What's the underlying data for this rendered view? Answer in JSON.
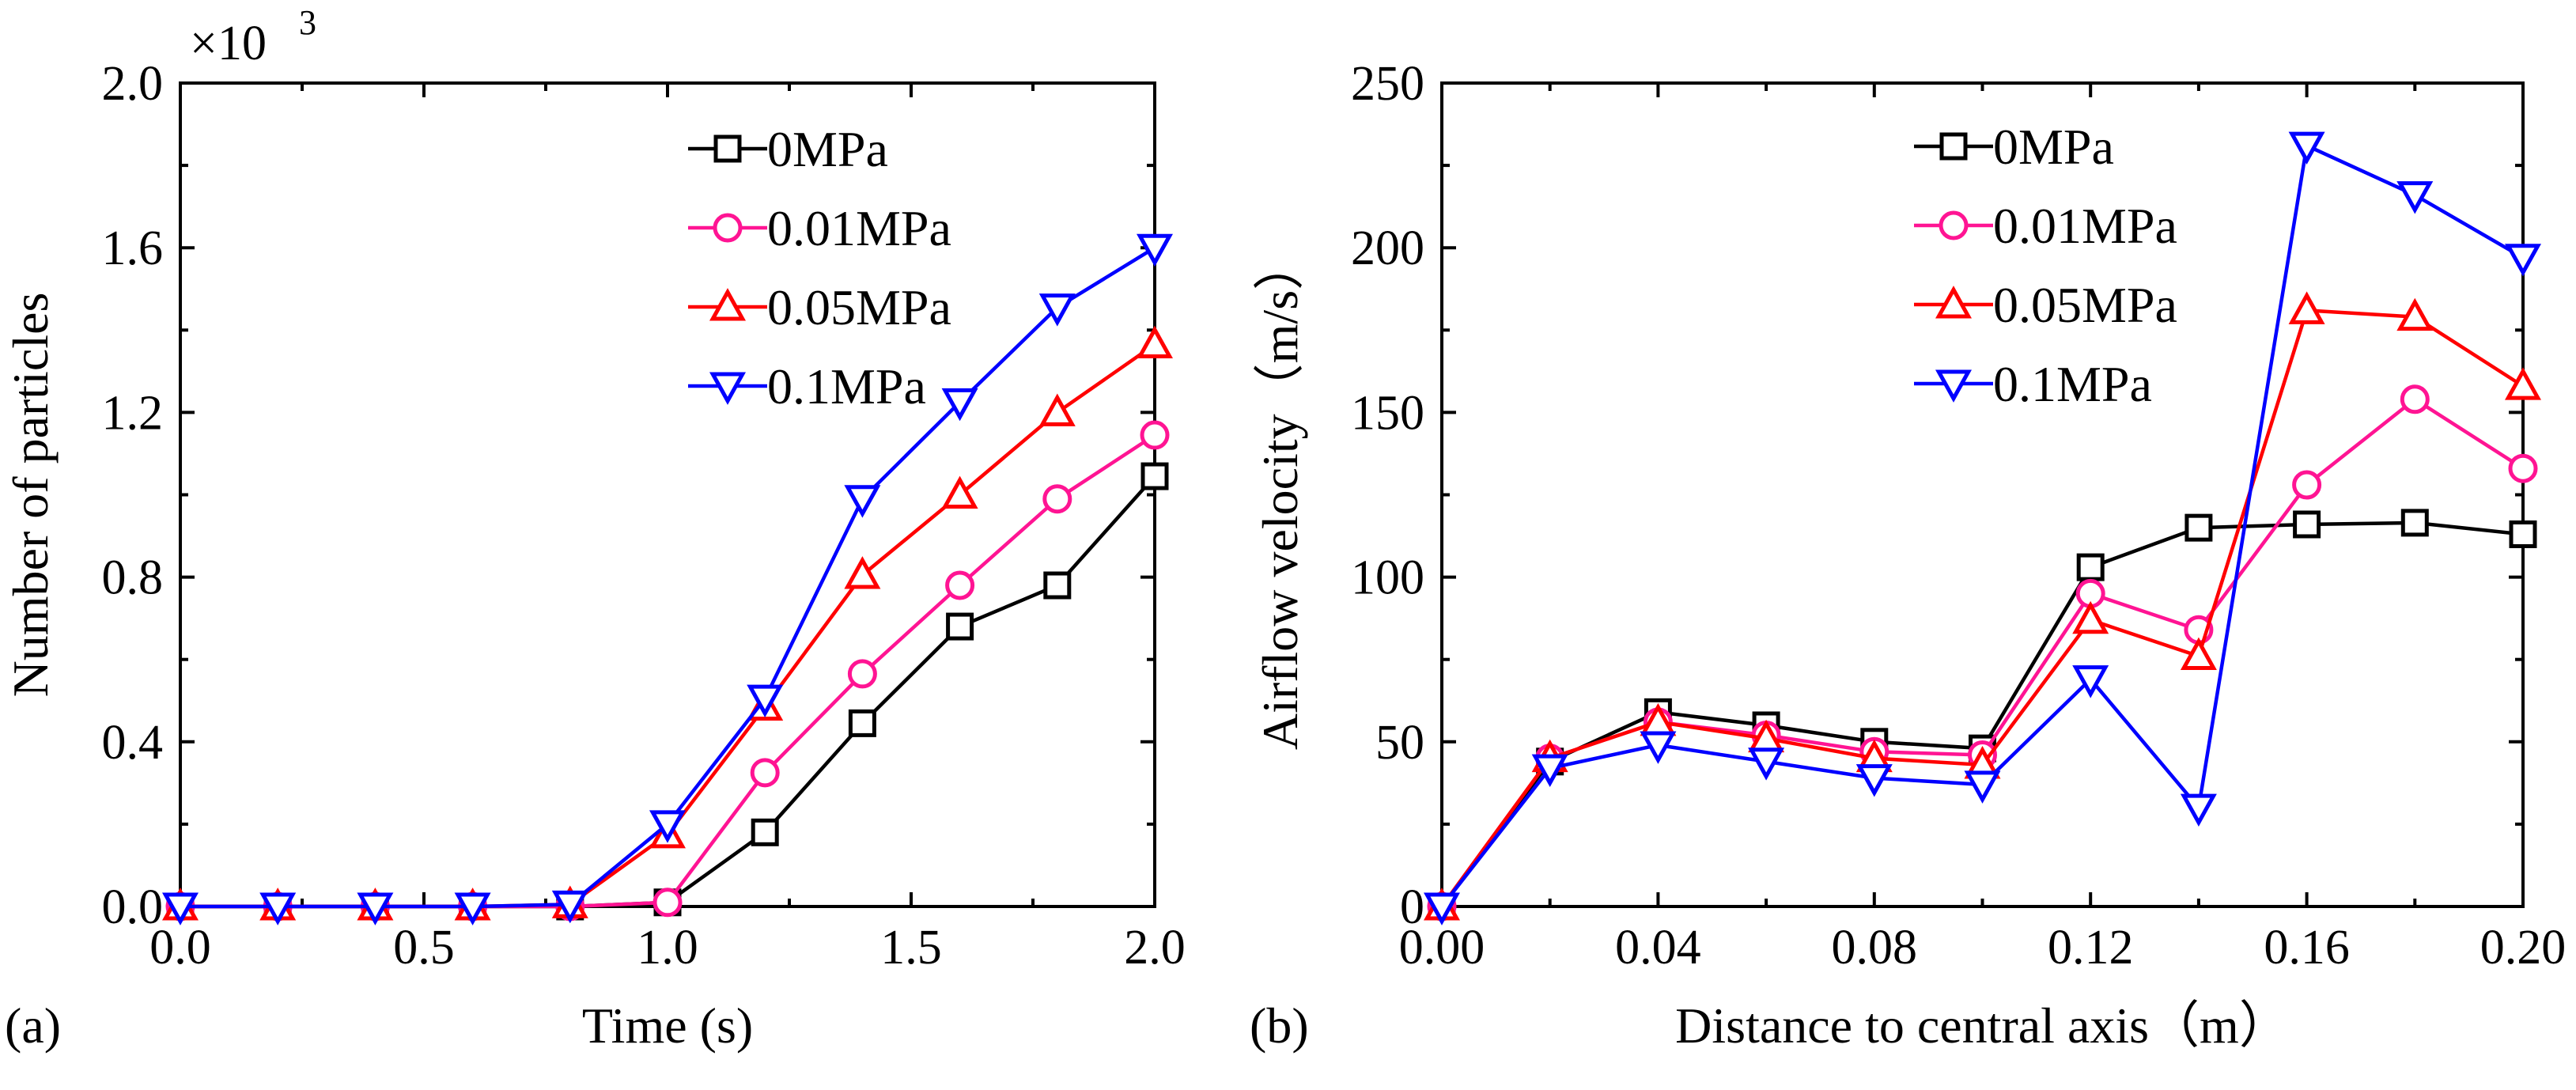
{
  "chart_data": [
    {
      "panel_label": "(a)",
      "type": "line",
      "title": "",
      "xlabel": "Time (s)",
      "ylabel": "Number of particles",
      "y_multiplier": "×10",
      "y_multiplier_exp": "3",
      "xlim": [
        0.0,
        2.0
      ],
      "ylim": [
        0.0,
        2.0
      ],
      "xticks": [
        "0.0",
        "0.5",
        "1.0",
        "1.5",
        "2.0"
      ],
      "xtick_values": [
        0.0,
        0.5,
        1.0,
        1.5,
        2.0
      ],
      "yticks": [
        "0.0",
        "0.4",
        "0.8",
        "1.2",
        "1.6",
        "2.0"
      ],
      "ytick_values": [
        0.0,
        0.4,
        0.8,
        1.2,
        1.6,
        2.0
      ],
      "legend_position": "top-right",
      "x": [
        0.0,
        0.2,
        0.4,
        0.6,
        0.8,
        1.0,
        1.2,
        1.4,
        1.6,
        1.8,
        2.0
      ],
      "series": [
        {
          "name": "0MPa",
          "color": "#000000",
          "marker": "square",
          "values": [
            0.0,
            0.0,
            0.0,
            0.0,
            0.0,
            0.01,
            0.18,
            0.445,
            0.68,
            0.78,
            1.045
          ]
        },
        {
          "name": "0.01MPa",
          "color": "#ff1493",
          "marker": "circle",
          "values": [
            0.0,
            0.0,
            0.0,
            0.0,
            0.0,
            0.01,
            0.325,
            0.565,
            0.78,
            0.99,
            1.145
          ]
        },
        {
          "name": "0.05MPa",
          "color": "#ff0000",
          "marker": "triangle-up",
          "values": [
            0.0,
            0.0,
            0.0,
            0.0,
            0.005,
            0.175,
            0.485,
            0.805,
            1.0,
            1.2,
            1.365
          ]
        },
        {
          "name": "0.1MPa",
          "color": "#0000ff",
          "marker": "triangle-down",
          "values": [
            0.0,
            0.0,
            0.0,
            0.0,
            0.005,
            0.2,
            0.505,
            0.99,
            1.225,
            1.455,
            1.6
          ]
        }
      ]
    },
    {
      "panel_label": "(b)",
      "type": "line",
      "title": "",
      "xlabel": "Distance to central axis（m）",
      "ylabel": "Airflow velocity（m/s）",
      "xlim": [
        0.0,
        0.2
      ],
      "ylim": [
        0,
        250
      ],
      "xticks": [
        "0.00",
        "0.04",
        "0.08",
        "0.12",
        "0.16",
        "0.20"
      ],
      "xtick_values": [
        0.0,
        0.04,
        0.08,
        0.12,
        0.16,
        0.2
      ],
      "yticks": [
        "0",
        "50",
        "100",
        "150",
        "200",
        "250"
      ],
      "ytick_values": [
        0,
        50,
        100,
        150,
        200,
        250
      ],
      "legend_position": "top-right",
      "x": [
        0.0,
        0.02,
        0.04,
        0.06,
        0.08,
        0.1,
        0.12,
        0.14,
        0.16,
        0.18,
        0.2
      ],
      "series": [
        {
          "name": "0MPa",
          "color": "#000000",
          "marker": "square",
          "values": [
            0,
            44,
            59,
            55,
            50,
            48,
            103,
            115,
            116,
            116.5,
            113
          ]
        },
        {
          "name": "0.01MPa",
          "color": "#ff1493",
          "marker": "circle",
          "values": [
            0,
            45,
            56,
            52,
            47,
            46,
            95,
            84,
            128,
            154,
            133
          ]
        },
        {
          "name": "0.05MPa",
          "color": "#ff0000",
          "marker": "triangle-up",
          "values": [
            0,
            45,
            56,
            51,
            45,
            43,
            87,
            76,
            181,
            179,
            158
          ]
        },
        {
          "name": "0.1MPa",
          "color": "#0000ff",
          "marker": "triangle-down",
          "values": [
            0,
            42,
            49,
            44,
            39,
            37,
            69,
            30,
            231,
            216,
            197
          ]
        }
      ]
    }
  ]
}
